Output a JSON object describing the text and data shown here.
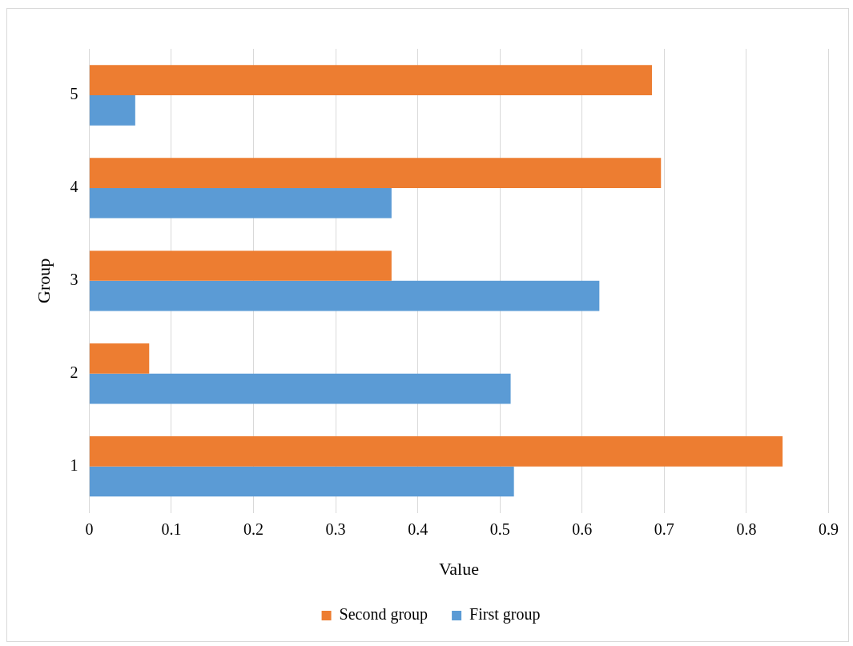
{
  "chart_data": {
    "type": "bar",
    "orientation": "horizontal",
    "xlabel": "Value",
    "ylabel": "Group",
    "categories": [
      "5",
      "4",
      "3",
      "2",
      "1"
    ],
    "series": [
      {
        "name": "Second group",
        "color": "#ed7d31",
        "values": [
          0.685,
          0.696,
          0.368,
          0.073,
          0.844
        ]
      },
      {
        "name": "First group",
        "color": "#5b9bd5",
        "values": [
          0.056,
          0.368,
          0.621,
          0.513,
          0.517
        ]
      }
    ],
    "xlim": [
      0,
      0.9
    ],
    "xticks": [
      0,
      0.1,
      0.2,
      0.3,
      0.4,
      0.5,
      0.6,
      0.7,
      0.8,
      0.9
    ],
    "grid": "x",
    "legend": "bottom"
  }
}
